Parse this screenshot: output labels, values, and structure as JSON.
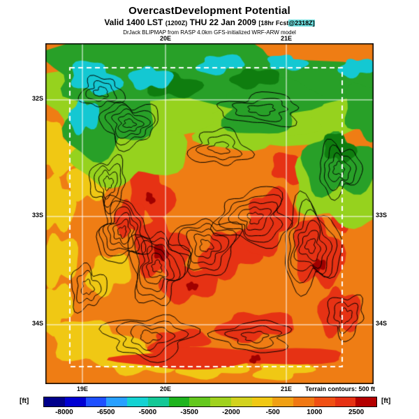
{
  "header": {
    "title": "OvercastDevelopment Potential",
    "valid_line": {
      "main": "Valid 1400 LST",
      "zulu": "(1200Z)",
      "date": "THU 22 Jan 2009",
      "fcst_pre": "[18hr Fcst",
      "fcst_hl": "@2318Z]"
    },
    "model_line": "DrJack BLIPMAP from RASP 4.0km GFS-initialized WRF-ARW model"
  },
  "map": {
    "labels": {
      "left": [
        "32S",
        "33S",
        "34S"
      ],
      "right": [
        "33S",
        "34S"
      ],
      "top": [
        "20E",
        "21E"
      ],
      "bottom": [
        "19E",
        "20E",
        "21E"
      ]
    },
    "palette": {
      "base": "#ef7d14",
      "yellow": "#f0c814",
      "red": "#e63214",
      "darkred": "#a00000",
      "lightgreen": "#96d21e",
      "green": "#28a028",
      "darkgreen": "#0f7d0f",
      "cyan": "#14c8d2",
      "grid": "#ffffff",
      "contour": "#000000",
      "border": "#000000"
    }
  },
  "footer": {
    "terrain_note": "Terrain contours: 500 ft",
    "unit_left": "[ft]",
    "unit_right": "[ft]"
  },
  "colorbar": {
    "colors": [
      "#00008b",
      "#0000d2",
      "#1e50ff",
      "#28a0ff",
      "#14d2d2",
      "#14c896",
      "#1eb41e",
      "#64c81e",
      "#a0d21e",
      "#d2d21e",
      "#f0c814",
      "#f0a014",
      "#f07814",
      "#f05014",
      "#e63214",
      "#b40000"
    ],
    "labels": [
      "-8000",
      "-6500",
      "-5000",
      "-3500",
      "-2000",
      "-500",
      "1000",
      "2500"
    ]
  }
}
